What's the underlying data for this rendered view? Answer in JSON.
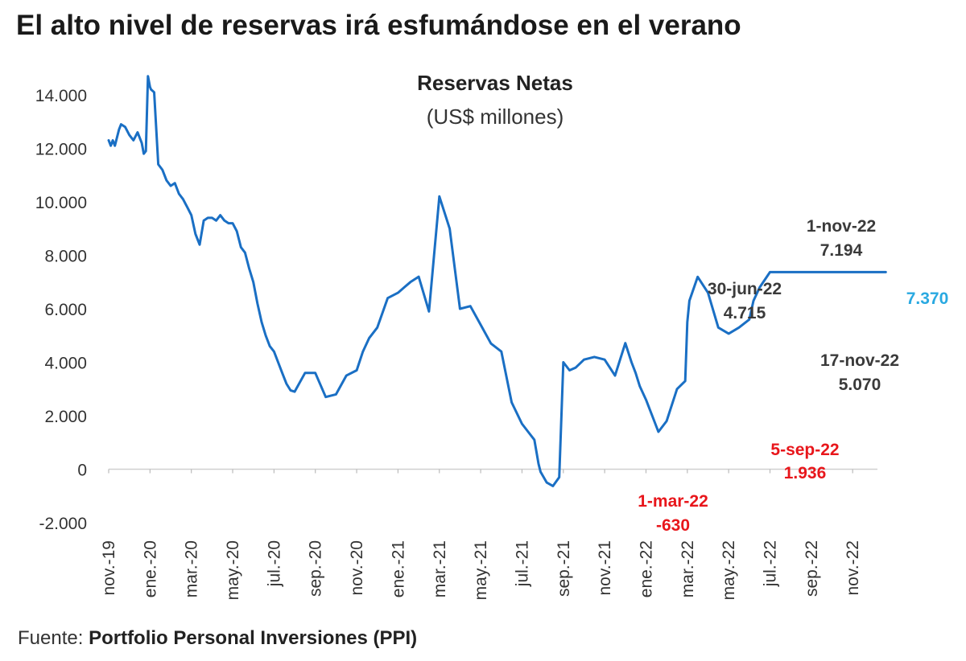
{
  "headline": "El alto nivel de reservas irá esfumándose en el verano",
  "source": {
    "prefix": "Fuente:",
    "name": "Portfolio Personal Inversiones (PPI)"
  },
  "colors": {
    "line": "#1a6fc4",
    "last_value": "#29a9e1",
    "negative": "#e8161b",
    "annotation": "#3a3a3a"
  },
  "chart_data": {
    "type": "line",
    "title": "Reservas Netas",
    "subtitle": "(US$ millones)",
    "xlabel": "",
    "ylabel": "",
    "ylim": [
      -2000,
      15000
    ],
    "y_ticks": [
      14000,
      12000,
      10000,
      8000,
      6000,
      4000,
      2000,
      0,
      -2000
    ],
    "y_tick_labels": [
      "14.000",
      "12.000",
      "10.000",
      "8.000",
      "6.000",
      "4.000",
      "2.000",
      "0",
      "-2.000"
    ],
    "x_tick_labels": [
      "nov.-19",
      "ene.-20",
      "mar.-20",
      "may.-20",
      "jul.-20",
      "sep.-20",
      "nov.-20",
      "ene.-21",
      "mar.-21",
      "may.-21",
      "jul.-21",
      "sep.-21",
      "nov.-21",
      "ene.-22",
      "mar.-22",
      "may.-22",
      "jul.-22",
      "sep.-22",
      "nov.-22"
    ],
    "x_tick_months": [
      0,
      2,
      4,
      6,
      8,
      10,
      12,
      14,
      16,
      18,
      20,
      22,
      24,
      26,
      28,
      30,
      32,
      34,
      36
    ],
    "series": [
      {
        "x": [
          0.0,
          0.1,
          0.2,
          0.3,
          0.5,
          0.6,
          0.8,
          1.0,
          1.2,
          1.4,
          1.6,
          1.7,
          1.8,
          1.9,
          2.0,
          2.05,
          2.2,
          2.4,
          2.6,
          2.8,
          3.0,
          3.2,
          3.4,
          3.6,
          3.8,
          4.0,
          4.2,
          4.4,
          4.6,
          4.8,
          5.0,
          5.2,
          5.4,
          5.6,
          5.8,
          6.0,
          6.2,
          6.4,
          6.6,
          6.8,
          7.0,
          7.2,
          7.4,
          7.6,
          7.8,
          8.0,
          8.2,
          8.4,
          8.6,
          8.8,
          9.0,
          9.5,
          10.0,
          10.5,
          11.0,
          11.5,
          12.0,
          12.3,
          12.6,
          13.0,
          13.5,
          14.0,
          14.3,
          14.6,
          15.0,
          15.5,
          16.0,
          16.5,
          17.0,
          17.5,
          18.0,
          18.5,
          19.0,
          19.5,
          20.0,
          20.3,
          20.6,
          20.8,
          20.9,
          21.2,
          21.5,
          21.8,
          22.0,
          22.3,
          22.6,
          23.0,
          23.5,
          24.0,
          24.5,
          25.0,
          25.3,
          25.5,
          25.7,
          26.0,
          26.3,
          26.6,
          27.0,
          27.5,
          27.9,
          28.0,
          28.1,
          28.5,
          29.0,
          29.5,
          30.0,
          30.5,
          31.0,
          31.2,
          31.5,
          32.0,
          32.3,
          32.6,
          33.0,
          33.3,
          33.6,
          33.8,
          34.0,
          34.3,
          34.6,
          35.0,
          35.3,
          35.5,
          35.8,
          36.0,
          36.3,
          36.6,
          36.9,
          37.1,
          37.2,
          37.4,
          37.5,
          37.6
        ],
        "y": [
          12300,
          12100,
          12300,
          12100,
          12700,
          12900,
          12800,
          12500,
          12300,
          12600,
          12200,
          11800,
          11900,
          14700,
          14300,
          14200,
          14100,
          11400,
          11200,
          10800,
          10600,
          10700,
          10300,
          10100,
          9800,
          9500,
          8800,
          8400,
          9300,
          9400,
          9400,
          9300,
          9500,
          9300,
          9200,
          9200,
          8900,
          8300,
          8100,
          7500,
          7000,
          6200,
          5500,
          5000,
          4600,
          4400,
          4000,
          3600,
          3200,
          2950,
          2900,
          3600,
          3600,
          2700,
          2800,
          3500,
          3700,
          4400,
          4900,
          5300,
          6400,
          6600,
          6800,
          7000,
          7200,
          5900,
          10200,
          9000,
          6000,
          6100,
          5400,
          4700,
          4400,
          2500,
          1700,
          1400,
          1100,
          200,
          -100,
          -500,
          -630,
          -300,
          4000,
          3700,
          3800,
          4100,
          4200,
          4100,
          3500,
          4715,
          4000,
          3600,
          3100,
          2600,
          2000,
          1400,
          1800,
          3000,
          3300,
          5500,
          6300,
          7194,
          6600,
          5300,
          5070,
          5300,
          5600,
          6300,
          6800,
          7370,
          7370,
          7370,
          7370,
          7370,
          7370,
          7370,
          7370,
          7370,
          7370,
          7370,
          7370,
          7370,
          7370,
          7370,
          7370,
          7370,
          7370,
          7370,
          7370,
          7370,
          7370,
          7370
        ]
      }
    ],
    "annotations": [
      {
        "date": "1-nov-22",
        "value": "7.194",
        "kind": "high"
      },
      {
        "date": "30-jun-22",
        "value": "4.715",
        "kind": "high"
      },
      {
        "date": "17-nov-22",
        "value": "5.070",
        "kind": "high"
      },
      {
        "date": "5-sep-22",
        "value": "1.936",
        "kind": "low"
      },
      {
        "date": "1-mar-22",
        "value": "-630",
        "kind": "low"
      }
    ],
    "last_value_label": "7.370"
  }
}
